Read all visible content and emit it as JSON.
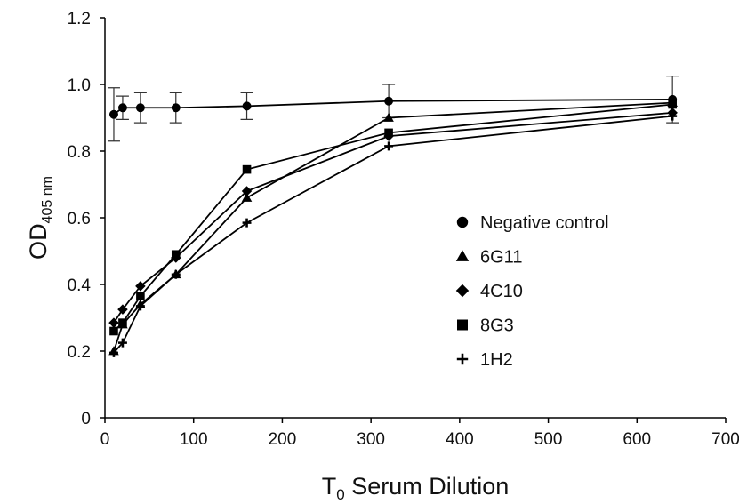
{
  "chart_data": {
    "type": "line",
    "xlabel_main": "T",
    "xlabel_sub": "0",
    "xlabel_rest": " Serum Dilution",
    "ylabel_main": "OD",
    "ylabel_sub": "405 nm",
    "xlim": [
      0,
      700
    ],
    "ylim": [
      0,
      1.2
    ],
    "x_ticks": [
      0,
      100,
      200,
      300,
      400,
      500,
      600,
      700
    ],
    "y_ticks": [
      "0",
      "0.2",
      "0.4",
      "0.6",
      "0.8",
      "1.0",
      "1.2"
    ],
    "x": [
      10,
      20,
      40,
      80,
      160,
      320,
      640
    ],
    "series": [
      {
        "name": "Negative control",
        "marker": "circle",
        "values": [
          0.91,
          0.93,
          0.93,
          0.93,
          0.935,
          0.95,
          0.955
        ],
        "error": [
          0.08,
          0.035,
          0.045,
          0.045,
          0.04,
          0.05,
          0.07
        ]
      },
      {
        "name": "6G11",
        "marker": "triangle",
        "values": [
          0.2,
          0.28,
          0.34,
          0.43,
          0.66,
          0.9,
          0.945
        ]
      },
      {
        "name": "4C10",
        "marker": "diamond",
        "values": [
          0.285,
          0.325,
          0.395,
          0.48,
          0.68,
          0.845,
          0.915
        ]
      },
      {
        "name": "8G3",
        "marker": "square",
        "values": [
          0.26,
          0.285,
          0.365,
          0.49,
          0.745,
          0.855,
          0.94
        ]
      },
      {
        "name": "1H2",
        "marker": "plus",
        "values": [
          0.195,
          0.225,
          0.335,
          0.43,
          0.585,
          0.815,
          0.905
        ]
      }
    ],
    "legend_position": "right",
    "grid": false
  }
}
